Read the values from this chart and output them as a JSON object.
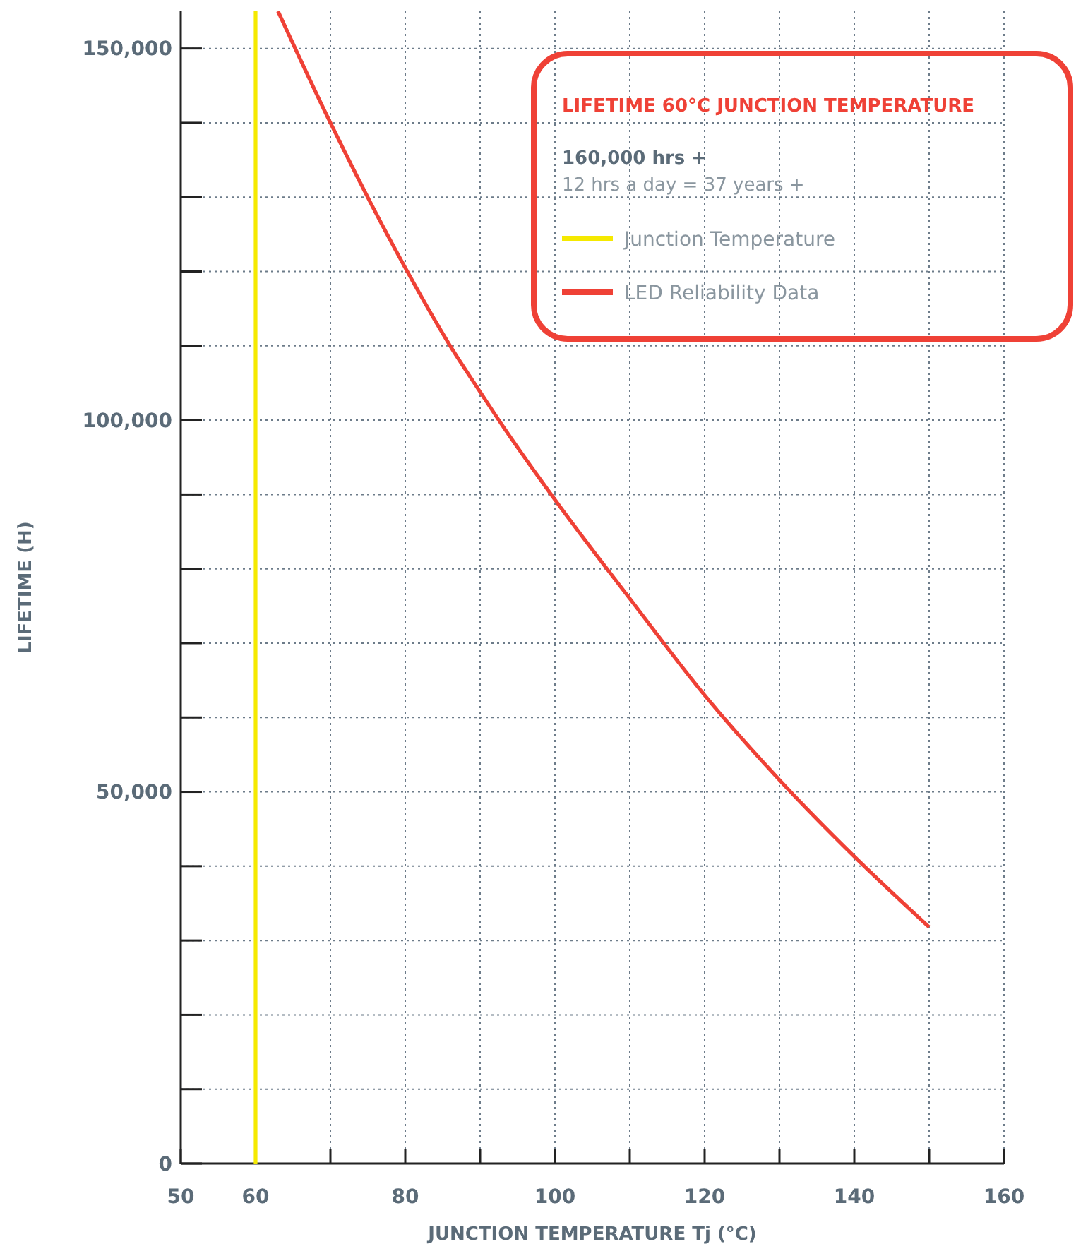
{
  "chart_data": {
    "type": "line",
    "xlabel": "JUNCTION TEMPERATURE Tj (°C)",
    "ylabel": "LIFETIME (H)",
    "xlim": [
      50,
      160
    ],
    "ylim": [
      0,
      155000
    ],
    "xticks": [
      50,
      60,
      {
        "value": 70,
        "label": null
      },
      80,
      {
        "value": 90,
        "label": null
      },
      100,
      {
        "value": 110,
        "label": null
      },
      120,
      {
        "value": 130,
        "label": null
      },
      140,
      {
        "value": 150,
        "label": null
      },
      160
    ],
    "yticks": [
      {
        "value": 0,
        "label": "0"
      },
      {
        "value": 10000,
        "label": null
      },
      {
        "value": 20000,
        "label": null
      },
      {
        "value": 30000,
        "label": null
      },
      {
        "value": 40000,
        "label": null
      },
      {
        "value": 50000,
        "label": "50,000"
      },
      {
        "value": 60000,
        "label": null
      },
      {
        "value": 70000,
        "label": null
      },
      {
        "value": 80000,
        "label": null
      },
      {
        "value": 90000,
        "label": null
      },
      {
        "value": 100000,
        "label": "100,000"
      },
      {
        "value": 110000,
        "label": null
      },
      {
        "value": 120000,
        "label": null
      },
      {
        "value": 130000,
        "label": null
      },
      {
        "value": 140000,
        "label": null
      },
      {
        "value": 150000,
        "label": "150,000"
      }
    ],
    "grid": true,
    "legend": "top right",
    "annotations": [
      "LIFETIME 60°C JUNCTION TEMPERATURE",
      "160,000 hrs +",
      "12 hrs a day = 37 years +"
    ],
    "series": [
      {
        "name": "Junction Temperature",
        "color": "#f5e900",
        "x": [
          60,
          60
        ],
        "values": [
          0,
          155000
        ]
      },
      {
        "name": "LED Reliability Data",
        "color": "#ef4136",
        "x": [
          63,
          70,
          80,
          86,
          90,
          92.5,
          100,
          110,
          120,
          130,
          140,
          150
        ],
        "values": [
          155000,
          140000,
          120500,
          110000,
          103800,
          100000,
          89300,
          76000,
          63000,
          51600,
          41300,
          31800
        ]
      }
    ]
  }
}
